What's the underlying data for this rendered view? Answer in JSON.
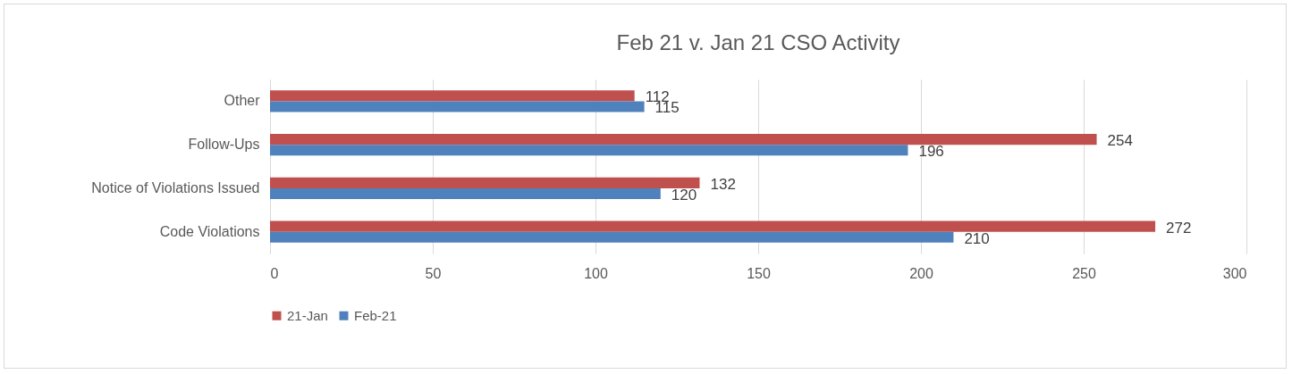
{
  "chart_data": {
    "type": "bar",
    "orientation": "horizontal",
    "title": "Feb 21 v. Jan 21 CSO Activity",
    "categories": [
      "Other",
      "Follow-Ups",
      "Notice of Violations Issued",
      "Code Violations"
    ],
    "series": [
      {
        "name": "21-Jan",
        "color": "#c0504d",
        "values": [
          112,
          254,
          132,
          272
        ]
      },
      {
        "name": "Feb-21",
        "color": "#4f81bd",
        "values": [
          115,
          196,
          120,
          210
        ]
      }
    ],
    "xlim": [
      0,
      300
    ],
    "xticks": [
      0,
      50,
      100,
      150,
      200,
      250,
      300
    ],
    "grid": "x",
    "legend": "bottom",
    "data_labels": true
  }
}
